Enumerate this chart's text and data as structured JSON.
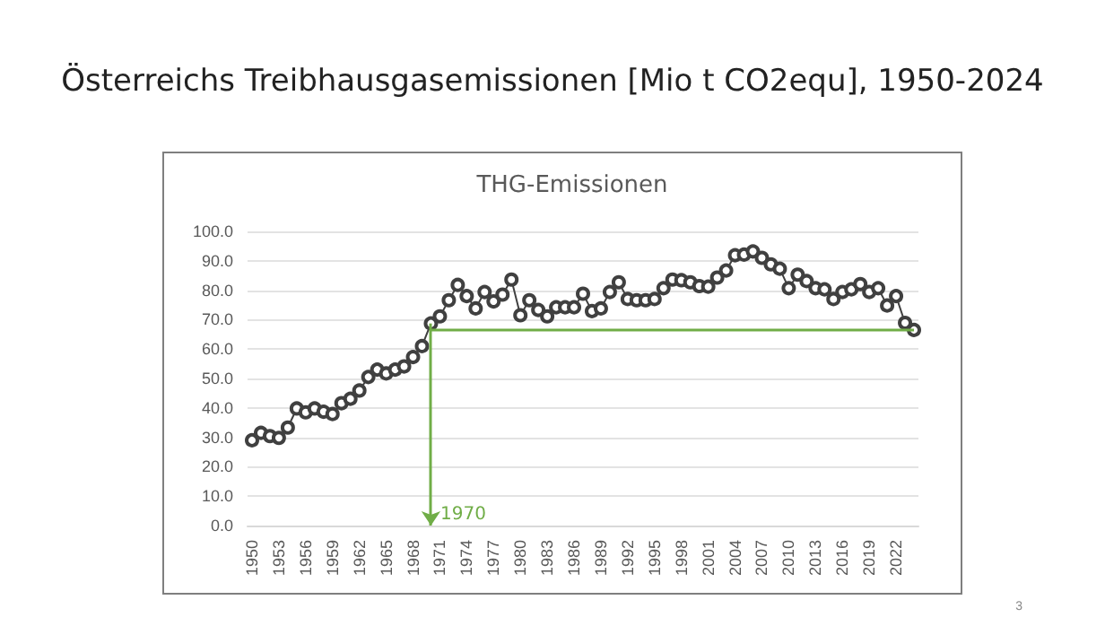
{
  "chart_data": {
    "type": "line",
    "title": "Österreichs Treibhausgasemissionen [Mio t CO2equ], 1950-2024",
    "subtitle": "THG-Emissionen",
    "categories": [
      "1950",
      null,
      null,
      "1953",
      null,
      null,
      "1956",
      null,
      null,
      "1959",
      null,
      null,
      "1962",
      null,
      null,
      "1965",
      null,
      null,
      "1968",
      null,
      null,
      "1971",
      null,
      null,
      "1974",
      null,
      null,
      "1977",
      null,
      null,
      "1980",
      null,
      null,
      "1983",
      null,
      null,
      "1986",
      null,
      null,
      "1989",
      null,
      null,
      "1992",
      null,
      null,
      "1995",
      null,
      null,
      "1998",
      null,
      null,
      "2001",
      null,
      null,
      "2004",
      null,
      null,
      "2007",
      null,
      null,
      "2010",
      null,
      null,
      "2013",
      null,
      null,
      "2016",
      null,
      null,
      "2019",
      null,
      null,
      "2022",
      null,
      null
    ],
    "series": [
      {
        "color": "#404040",
        "values": [
          29,
          31.5,
          30.4,
          29.8,
          33.3,
          39.8,
          38.5,
          39.8,
          38.7,
          37.9,
          41.6,
          43.1,
          45.9,
          50.5,
          53,
          51.7,
          53,
          54.1,
          57.3,
          61,
          68.7,
          71.1,
          76.6,
          81.8,
          78,
          73.8,
          79.4,
          76.2,
          78.5,
          83.6,
          71.5,
          76.6,
          73.3,
          71.1,
          74.2,
          74.2,
          74.2,
          78.8,
          72.9,
          73.8,
          79.4,
          82.7,
          77,
          76.6,
          76.6,
          77,
          80.7,
          83.6,
          83.4,
          82.7,
          81.4,
          81.2,
          84.3,
          86.7,
          91.9,
          92.1,
          93.2,
          91,
          88.8,
          87.3,
          80.7,
          85.3,
          83.1,
          80.7,
          80.3,
          77,
          79.4,
          80.3,
          82.1,
          79.4,
          80.7,
          74.8,
          78,
          68.9,
          66.5
        ]
      }
    ],
    "ylim": [
      0,
      100
    ],
    "yticks": [
      {
        "value": 0,
        "label": "0.0"
      },
      {
        "value": 10,
        "label": "10.0"
      },
      {
        "value": 20,
        "label": "20.0"
      },
      {
        "value": 30,
        "label": "30.0"
      },
      {
        "value": 40,
        "label": "40.0"
      },
      {
        "value": 50,
        "label": "50.0"
      },
      {
        "value": 60,
        "label": "60.0"
      },
      {
        "value": 70,
        "label": "70.0"
      },
      {
        "value": 80,
        "label": "80.0"
      },
      {
        "value": 90,
        "label": "90.0"
      },
      {
        "value": 100,
        "label": "100.0"
      }
    ],
    "grid": "y",
    "marker": "circle",
    "line_style": "solid",
    "ref_lines": [
      {
        "axis": "y",
        "value": 66.5,
        "color": "#70ad47"
      }
    ],
    "annotations": [
      "1970",
      "3"
    ]
  }
}
